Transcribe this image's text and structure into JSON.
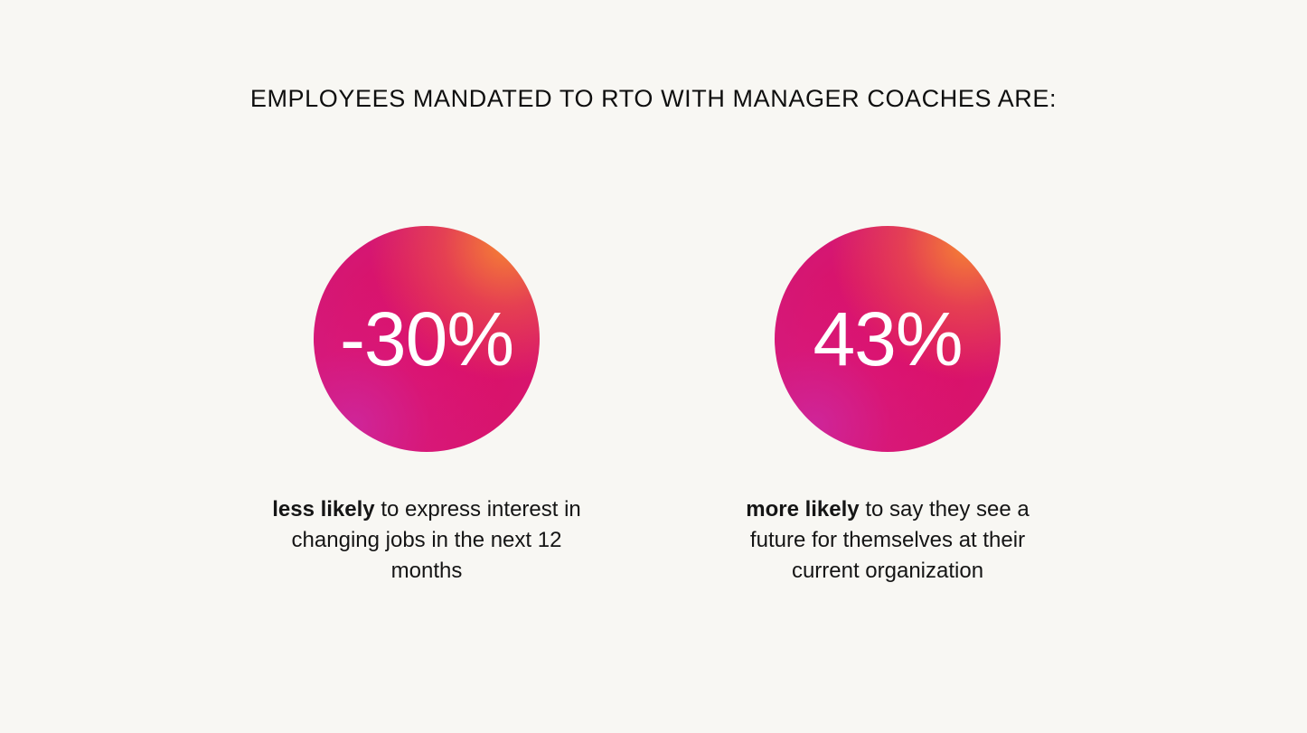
{
  "headline": "EMPLOYEES MANDATED TO RTO WITH MANAGER COACHES ARE:",
  "stats": [
    {
      "value": "-30%",
      "caption_bold": "less likely",
      "caption_rest": "to express interest in changing jobs in the next 12 months"
    },
    {
      "value": "43%",
      "caption_bold": "more likely",
      "caption_rest": "to say they see a future for themselves at their current organization"
    }
  ],
  "colors": {
    "background": "#f8f7f3",
    "circle_primary": "#dc0f66",
    "circle_highlight": "#f78630",
    "circle_shadow": "#cd28a0",
    "text": "#111111"
  }
}
